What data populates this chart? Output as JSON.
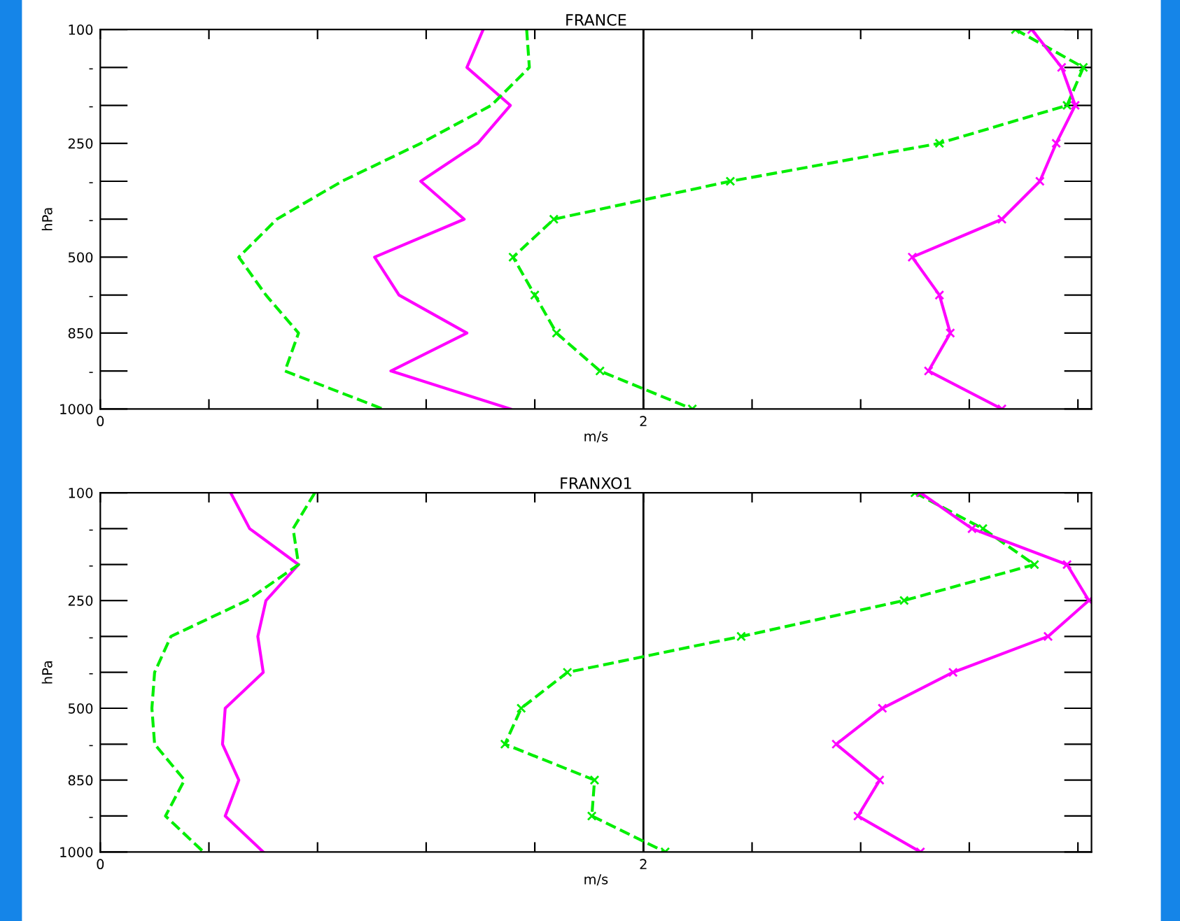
{
  "chart_data": [
    {
      "type": "line",
      "orientation": "horizontal",
      "title": "FRANCE",
      "xlabel": "m/s",
      "ylabel": "hPa",
      "categories": [
        "100",
        "-",
        "-",
        "250",
        "-",
        "-",
        "500",
        "-",
        "850",
        "-",
        "1000"
      ],
      "xlim": [
        0,
        3.65
      ],
      "xticks": [
        0,
        {
          "value": 0.4,
          "label": null
        },
        {
          "value": 0.8,
          "label": null
        },
        {
          "value": 1.2,
          "label": null
        },
        {
          "value": 1.6,
          "label": null
        },
        2,
        {
          "value": 2.4,
          "label": null
        },
        {
          "value": 2.8,
          "label": null
        },
        {
          "value": 3.2,
          "label": null
        },
        {
          "value": 3.6,
          "label": null
        }
      ],
      "grid": false,
      "legend": false,
      "ref_lines": [
        {
          "axis": "x",
          "value": 2,
          "color": "#000000",
          "line_style": "solid"
        }
      ],
      "series": [
        {
          "color": "#ff00ff",
          "line_style": "solid",
          "marker": "none",
          "values": [
            1.41,
            1.35,
            1.51,
            1.39,
            1.18,
            1.34,
            1.01,
            1.1,
            1.35,
            1.07,
            1.51
          ]
        },
        {
          "color": "#00ee00",
          "line_style": "dashed",
          "marker": "none",
          "values": [
            1.57,
            1.58,
            1.44,
            1.18,
            0.89,
            0.65,
            0.51,
            0.61,
            0.73,
            0.68,
            1.04
          ]
        },
        {
          "color": "#00ee00",
          "line_style": "dashed",
          "marker": "cross",
          "values": [
            3.37,
            3.62,
            3.56,
            3.09,
            2.32,
            1.67,
            1.52,
            1.6,
            1.68,
            1.84,
            2.18
          ]
        },
        {
          "color": "#ff00ff",
          "line_style": "solid",
          "marker": "cross",
          "values": [
            3.43,
            3.54,
            3.59,
            3.52,
            3.46,
            3.32,
            2.99,
            3.09,
            3.13,
            3.05,
            3.32
          ]
        }
      ]
    },
    {
      "type": "line",
      "orientation": "horizontal",
      "title": "FRANXO1",
      "xlabel": "m/s",
      "ylabel": "hPa",
      "categories": [
        "100",
        "-",
        "-",
        "250",
        "-",
        "-",
        "500",
        "-",
        "850",
        "-",
        "1000"
      ],
      "xlim": [
        0,
        3.65
      ],
      "xticks": [
        0,
        {
          "value": 0.4,
          "label": null
        },
        {
          "value": 0.8,
          "label": null
        },
        {
          "value": 1.2,
          "label": null
        },
        {
          "value": 1.6,
          "label": null
        },
        2,
        {
          "value": 2.4,
          "label": null
        },
        {
          "value": 2.8,
          "label": null
        },
        {
          "value": 3.2,
          "label": null
        },
        {
          "value": 3.6,
          "label": null
        }
      ],
      "grid": false,
      "legend": false,
      "ref_lines": [
        {
          "axis": "x",
          "value": 2,
          "color": "#000000",
          "line_style": "solid"
        }
      ],
      "series": [
        {
          "color": "#ff00ff",
          "line_style": "solid",
          "marker": "none",
          "values": [
            0.48,
            0.55,
            0.73,
            0.61,
            0.58,
            0.6,
            0.46,
            0.45,
            0.51,
            0.46,
            0.6
          ]
        },
        {
          "color": "#00ee00",
          "line_style": "dashed",
          "marker": "none",
          "values": [
            0.79,
            0.71,
            0.73,
            0.54,
            0.26,
            0.2,
            0.19,
            0.2,
            0.31,
            0.24,
            0.38
          ]
        },
        {
          "color": "#00ee00",
          "line_style": "dashed",
          "marker": "cross",
          "values": [
            3.0,
            3.25,
            3.44,
            2.96,
            2.36,
            1.72,
            1.55,
            1.49,
            1.82,
            1.81,
            2.08
          ]
        },
        {
          "color": "#ff00ff",
          "line_style": "solid",
          "marker": "cross",
          "values": [
            3.02,
            3.21,
            3.56,
            3.64,
            3.49,
            3.14,
            2.88,
            2.71,
            2.87,
            2.79,
            3.02
          ]
        }
      ]
    }
  ]
}
